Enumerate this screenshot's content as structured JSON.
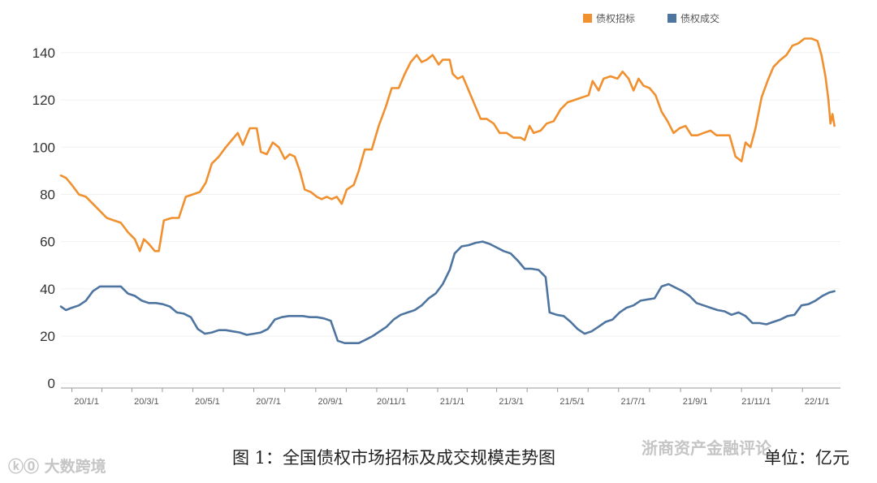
{
  "chart_data": {
    "type": "line",
    "y_ticks": [
      0,
      20,
      40,
      60,
      80,
      100,
      120,
      140
    ],
    "ylim": [
      -2,
      152
    ],
    "x_tick_labels": [
      "20/1/1",
      "20/3/1",
      "20/5/1",
      "20/7/1",
      "20/9/1",
      "20/11/1",
      "21/1/1",
      "21/3/1",
      "21/5/1",
      "21/7/1",
      "21/9/1",
      "21/11/1",
      "22/1/1"
    ],
    "x_tick_dates": [
      "2020-01-01",
      "2020-03-01",
      "2020-05-01",
      "2020-07-01",
      "2020-09-01",
      "2020-11-01",
      "2021-01-01",
      "2021-03-01",
      "2021-05-01",
      "2021-07-01",
      "2021-09-01",
      "2021-11-01",
      "2022-01-01"
    ],
    "xlim": [
      "2019-12-21",
      "2022-02-08"
    ],
    "grid": true,
    "legend_position": "top-right",
    "series": [
      {
        "name": "债权招标",
        "color": "#f0902f",
        "points": [
          [
            "2019-12-21",
            88
          ],
          [
            "2019-12-26",
            87
          ],
          [
            "2020-01-01",
            84
          ],
          [
            "2020-01-08",
            80
          ],
          [
            "2020-01-15",
            79
          ],
          [
            "2020-01-22",
            76
          ],
          [
            "2020-01-29",
            73
          ],
          [
            "2020-02-05",
            70
          ],
          [
            "2020-02-12",
            69
          ],
          [
            "2020-02-19",
            68
          ],
          [
            "2020-02-26",
            64
          ],
          [
            "2020-03-04",
            61
          ],
          [
            "2020-03-09",
            56
          ],
          [
            "2020-03-13",
            61
          ],
          [
            "2020-03-18",
            59
          ],
          [
            "2020-03-24",
            56
          ],
          [
            "2020-03-28",
            56
          ],
          [
            "2020-04-02",
            69
          ],
          [
            "2020-04-10",
            70
          ],
          [
            "2020-04-17",
            70
          ],
          [
            "2020-04-24",
            79
          ],
          [
            "2020-05-01",
            80
          ],
          [
            "2020-05-08",
            81
          ],
          [
            "2020-05-14",
            85
          ],
          [
            "2020-05-20",
            93
          ],
          [
            "2020-05-27",
            96
          ],
          [
            "2020-06-03",
            100
          ],
          [
            "2020-06-09",
            103
          ],
          [
            "2020-06-15",
            106
          ],
          [
            "2020-06-20",
            101
          ],
          [
            "2020-06-27",
            108
          ],
          [
            "2020-07-04",
            108
          ],
          [
            "2020-07-08",
            98
          ],
          [
            "2020-07-14",
            97
          ],
          [
            "2020-07-20",
            102
          ],
          [
            "2020-07-26",
            100
          ],
          [
            "2020-08-01",
            95
          ],
          [
            "2020-08-06",
            97
          ],
          [
            "2020-08-11",
            96
          ],
          [
            "2020-08-16",
            90
          ],
          [
            "2020-08-21",
            82
          ],
          [
            "2020-08-27",
            81
          ],
          [
            "2020-09-02",
            79
          ],
          [
            "2020-09-07",
            78
          ],
          [
            "2020-09-12",
            79
          ],
          [
            "2020-09-17",
            78
          ],
          [
            "2020-09-22",
            79
          ],
          [
            "2020-09-27",
            76
          ],
          [
            "2020-10-02",
            82
          ],
          [
            "2020-10-09",
            84
          ],
          [
            "2020-10-14",
            90
          ],
          [
            "2020-10-20",
            99
          ],
          [
            "2020-10-27",
            99
          ],
          [
            "2020-11-03",
            109
          ],
          [
            "2020-11-10",
            117
          ],
          [
            "2020-11-16",
            125
          ],
          [
            "2020-11-23",
            125
          ],
          [
            "2020-11-29",
            131
          ],
          [
            "2020-12-05",
            136
          ],
          [
            "2020-12-11",
            139
          ],
          [
            "2020-12-16",
            136
          ],
          [
            "2020-12-21",
            137
          ],
          [
            "2020-12-27",
            139
          ],
          [
            "2021-01-02",
            135
          ],
          [
            "2021-01-06",
            137
          ],
          [
            "2021-01-13",
            137
          ],
          [
            "2021-01-16",
            131
          ],
          [
            "2021-01-21",
            129
          ],
          [
            "2021-01-26",
            130
          ],
          [
            "2021-02-01",
            124
          ],
          [
            "2021-02-07",
            118
          ],
          [
            "2021-02-13",
            112
          ],
          [
            "2021-02-19",
            112
          ],
          [
            "2021-02-26",
            110
          ],
          [
            "2021-03-04",
            106
          ],
          [
            "2021-03-11",
            106
          ],
          [
            "2021-03-18",
            104
          ],
          [
            "2021-03-25",
            104
          ],
          [
            "2021-03-29",
            103
          ],
          [
            "2021-04-03",
            109
          ],
          [
            "2021-04-07",
            106
          ],
          [
            "2021-04-14",
            107
          ],
          [
            "2021-04-20",
            110
          ],
          [
            "2021-04-27",
            111
          ],
          [
            "2021-05-04",
            116
          ],
          [
            "2021-05-11",
            119
          ],
          [
            "2021-05-18",
            120
          ],
          [
            "2021-05-25",
            121
          ],
          [
            "2021-06-01",
            122
          ],
          [
            "2021-06-05",
            128
          ],
          [
            "2021-06-11",
            124
          ],
          [
            "2021-06-16",
            129
          ],
          [
            "2021-06-23",
            130
          ],
          [
            "2021-06-30",
            129
          ],
          [
            "2021-07-05",
            132
          ],
          [
            "2021-07-11",
            129
          ],
          [
            "2021-07-16",
            124
          ],
          [
            "2021-07-21",
            129
          ],
          [
            "2021-07-26",
            126
          ],
          [
            "2021-08-01",
            125
          ],
          [
            "2021-08-07",
            122
          ],
          [
            "2021-08-13",
            115
          ],
          [
            "2021-08-19",
            111
          ],
          [
            "2021-08-25",
            106
          ],
          [
            "2021-08-31",
            108
          ],
          [
            "2021-09-06",
            109
          ],
          [
            "2021-09-12",
            105
          ],
          [
            "2021-09-18",
            105
          ],
          [
            "2021-09-24",
            106
          ],
          [
            "2021-10-01",
            107
          ],
          [
            "2021-10-07",
            105
          ],
          [
            "2021-10-14",
            105
          ],
          [
            "2021-10-20",
            105
          ],
          [
            "2021-10-26",
            96
          ],
          [
            "2021-11-01",
            94
          ],
          [
            "2021-11-05",
            102
          ],
          [
            "2021-11-10",
            100
          ],
          [
            "2021-11-15",
            108
          ],
          [
            "2021-11-21",
            121
          ],
          [
            "2021-11-27",
            128
          ],
          [
            "2021-12-03",
            134
          ],
          [
            "2021-12-10",
            137
          ],
          [
            "2021-12-16",
            139
          ],
          [
            "2021-12-22",
            143
          ],
          [
            "2021-12-28",
            144
          ],
          [
            "2022-01-03",
            146
          ],
          [
            "2022-01-10",
            146
          ],
          [
            "2022-01-16",
            145
          ],
          [
            "2022-01-20",
            139
          ],
          [
            "2022-01-24",
            130
          ],
          [
            "2022-01-27",
            120
          ],
          [
            "2022-01-29",
            110
          ],
          [
            "2022-01-31",
            114
          ],
          [
            "2022-02-02",
            109
          ]
        ]
      },
      {
        "name": "债权成交",
        "color": "#4e74a0",
        "points": [
          [
            "2019-12-21",
            32.5
          ],
          [
            "2019-12-26",
            31
          ],
          [
            "2020-01-01",
            32
          ],
          [
            "2020-01-08",
            33
          ],
          [
            "2020-01-15",
            35
          ],
          [
            "2020-01-22",
            39
          ],
          [
            "2020-01-29",
            41
          ],
          [
            "2020-02-05",
            41
          ],
          [
            "2020-02-12",
            41
          ],
          [
            "2020-02-19",
            41
          ],
          [
            "2020-02-26",
            38
          ],
          [
            "2020-03-04",
            37
          ],
          [
            "2020-03-11",
            35
          ],
          [
            "2020-03-18",
            34
          ],
          [
            "2020-03-25",
            34
          ],
          [
            "2020-04-01",
            33.5
          ],
          [
            "2020-04-08",
            32.5
          ],
          [
            "2020-04-15",
            30
          ],
          [
            "2020-04-22",
            29.5
          ],
          [
            "2020-04-29",
            28
          ],
          [
            "2020-05-06",
            23
          ],
          [
            "2020-05-13",
            21
          ],
          [
            "2020-05-20",
            21.5
          ],
          [
            "2020-05-27",
            22.5
          ],
          [
            "2020-06-03",
            22.5
          ],
          [
            "2020-06-10",
            22
          ],
          [
            "2020-06-17",
            21.5
          ],
          [
            "2020-06-24",
            20.5
          ],
          [
            "2020-07-01",
            21
          ],
          [
            "2020-07-08",
            21.5
          ],
          [
            "2020-07-15",
            23
          ],
          [
            "2020-07-22",
            27
          ],
          [
            "2020-07-29",
            28
          ],
          [
            "2020-08-05",
            28.5
          ],
          [
            "2020-08-12",
            28.5
          ],
          [
            "2020-08-19",
            28.5
          ],
          [
            "2020-08-26",
            28
          ],
          [
            "2020-09-02",
            28
          ],
          [
            "2020-09-09",
            27.5
          ],
          [
            "2020-09-16",
            26.5
          ],
          [
            "2020-09-23",
            18
          ],
          [
            "2020-09-30",
            17
          ],
          [
            "2020-10-07",
            17
          ],
          [
            "2020-10-14",
            17
          ],
          [
            "2020-10-21",
            18.5
          ],
          [
            "2020-10-28",
            20
          ],
          [
            "2020-11-04",
            22
          ],
          [
            "2020-11-11",
            24
          ],
          [
            "2020-11-18",
            27
          ],
          [
            "2020-11-25",
            29
          ],
          [
            "2020-12-02",
            30
          ],
          [
            "2020-12-09",
            31
          ],
          [
            "2020-12-16",
            33
          ],
          [
            "2020-12-23",
            36
          ],
          [
            "2020-12-30",
            38
          ],
          [
            "2021-01-06",
            42
          ],
          [
            "2021-01-13",
            48
          ],
          [
            "2021-01-18",
            55
          ],
          [
            "2021-01-25",
            58
          ],
          [
            "2021-02-01",
            58.5
          ],
          [
            "2021-02-08",
            59.5
          ],
          [
            "2021-02-15",
            60
          ],
          [
            "2021-02-22",
            59
          ],
          [
            "2021-03-01",
            57.5
          ],
          [
            "2021-03-08",
            56
          ],
          [
            "2021-03-15",
            55
          ],
          [
            "2021-03-22",
            52
          ],
          [
            "2021-03-29",
            48.5
          ],
          [
            "2021-04-05",
            48.5
          ],
          [
            "2021-04-12",
            48
          ],
          [
            "2021-04-19",
            45
          ],
          [
            "2021-04-23",
            30
          ],
          [
            "2021-04-30",
            29
          ],
          [
            "2021-05-07",
            28.5
          ],
          [
            "2021-05-14",
            26
          ],
          [
            "2021-05-21",
            23
          ],
          [
            "2021-05-28",
            21
          ],
          [
            "2021-06-04",
            22
          ],
          [
            "2021-06-11",
            24
          ],
          [
            "2021-06-18",
            26
          ],
          [
            "2021-06-25",
            27
          ],
          [
            "2021-07-02",
            30
          ],
          [
            "2021-07-09",
            32
          ],
          [
            "2021-07-16",
            33
          ],
          [
            "2021-07-23",
            35
          ],
          [
            "2021-07-30",
            35.5
          ],
          [
            "2021-08-06",
            36
          ],
          [
            "2021-08-13",
            41
          ],
          [
            "2021-08-20",
            42
          ],
          [
            "2021-08-27",
            40.5
          ],
          [
            "2021-09-03",
            39
          ],
          [
            "2021-09-10",
            37
          ],
          [
            "2021-09-17",
            34
          ],
          [
            "2021-09-24",
            33
          ],
          [
            "2021-10-01",
            32
          ],
          [
            "2021-10-08",
            31
          ],
          [
            "2021-10-15",
            30.5
          ],
          [
            "2021-10-22",
            29
          ],
          [
            "2021-10-29",
            30
          ],
          [
            "2021-11-05",
            28.5
          ],
          [
            "2021-11-12",
            25.5
          ],
          [
            "2021-11-19",
            25.5
          ],
          [
            "2021-11-26",
            25
          ],
          [
            "2021-12-03",
            26
          ],
          [
            "2021-12-10",
            27
          ],
          [
            "2021-12-17",
            28.5
          ],
          [
            "2021-12-24",
            29
          ],
          [
            "2021-12-31",
            33
          ],
          [
            "2022-01-07",
            33.5
          ],
          [
            "2022-01-14",
            35
          ],
          [
            "2022-01-21",
            37
          ],
          [
            "2022-01-28",
            38.5
          ],
          [
            "2022-02-02",
            39
          ]
        ]
      }
    ]
  },
  "caption": {
    "title": "图 1：全国债权市场招标及成交规模走势图",
    "unit": "单位：亿元"
  },
  "watermarks": {
    "left": "ⓚ⓪ 大数跨境",
    "right": "浙商资产金融评论"
  }
}
